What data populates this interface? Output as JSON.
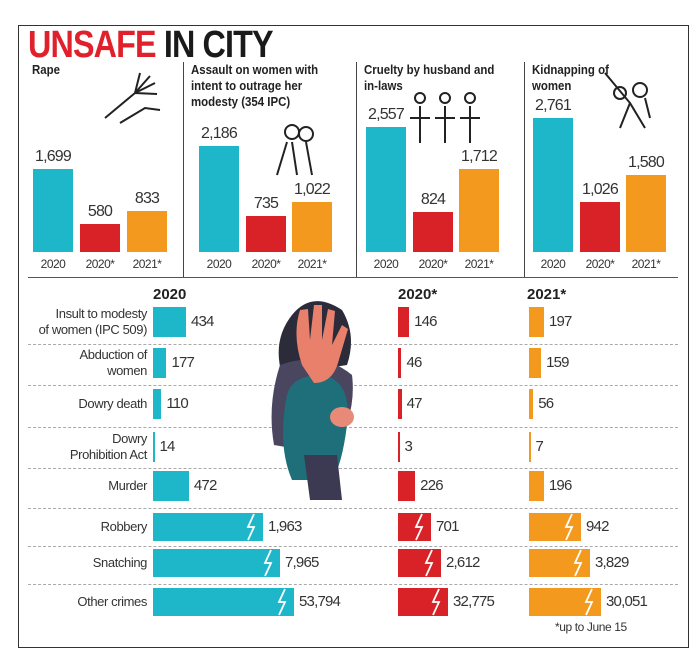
{
  "title": {
    "part1": "UNSAFE",
    "part2": "IN CITY"
  },
  "colors": {
    "2020": "#1eb6c9",
    "2020*": "#d92228",
    "2021*": "#f39a1e"
  },
  "chart_data": [
    {
      "type": "bar",
      "categories": [
        "2020",
        "2020*",
        "2021*"
      ],
      "panels": [
        {
          "title": "Rape",
          "icon": "hands-icon",
          "values": [
            1699,
            580,
            833
          ],
          "labels": [
            "1,699",
            "580",
            "833"
          ]
        },
        {
          "title": "Assault on women with intent to outrage her modesty (354 IPC)",
          "icon": "assault-icon",
          "values": [
            2186,
            735,
            1022
          ],
          "labels": [
            "2,186",
            "735",
            "1,022"
          ]
        },
        {
          "title": "Cruelty by husband and in-laws",
          "icon": "family-icon",
          "values": [
            2557,
            824,
            1712
          ],
          "labels": [
            "2,557",
            "824",
            "1,712"
          ]
        },
        {
          "title": "Kidnapping of women",
          "icon": "kidnap-icon",
          "values": [
            2761,
            1026,
            1580
          ],
          "labels": [
            "2,761",
            "1,026",
            "1,580"
          ]
        }
      ]
    },
    {
      "type": "bar",
      "orientation": "horizontal",
      "columns": [
        "2020",
        "2020*",
        "2021*"
      ],
      "rows": [
        {
          "label": [
            "Insult to modesty",
            "of women (IPC 509)"
          ],
          "values": [
            434,
            146,
            197
          ],
          "labels": [
            "434",
            "146",
            "197"
          ]
        },
        {
          "label": [
            "Abduction of",
            "women"
          ],
          "values": [
            177,
            46,
            159
          ],
          "labels": [
            "177",
            "46",
            "159"
          ]
        },
        {
          "label": [
            "Dowry death"
          ],
          "values": [
            110,
            47,
            56
          ],
          "labels": [
            "110",
            "47",
            "56"
          ]
        },
        {
          "label": [
            "Dowry",
            "Prohibition Act"
          ],
          "values": [
            14,
            3,
            7
          ],
          "labels": [
            "14",
            "3",
            "7"
          ]
        },
        {
          "label": [
            "Murder"
          ],
          "values": [
            472,
            226,
            196
          ],
          "labels": [
            "472",
            "226",
            "196"
          ]
        },
        {
          "label": [
            "Robbery"
          ],
          "values": [
            1963,
            701,
            942
          ],
          "labels": [
            "1,963",
            "701",
            "942"
          ],
          "broken_axis": true
        },
        {
          "label": [
            "Snatching"
          ],
          "values": [
            7965,
            2612,
            3829
          ],
          "labels": [
            "7,965",
            "2,612",
            "3,829"
          ],
          "broken_axis": true
        },
        {
          "label": [
            "Other crimes"
          ],
          "values": [
            53794,
            32775,
            30051
          ],
          "labels": [
            "53,794",
            "32,775",
            "30,051"
          ],
          "broken_axis": true
        }
      ]
    }
  ],
  "footnote": "*up to June 15"
}
